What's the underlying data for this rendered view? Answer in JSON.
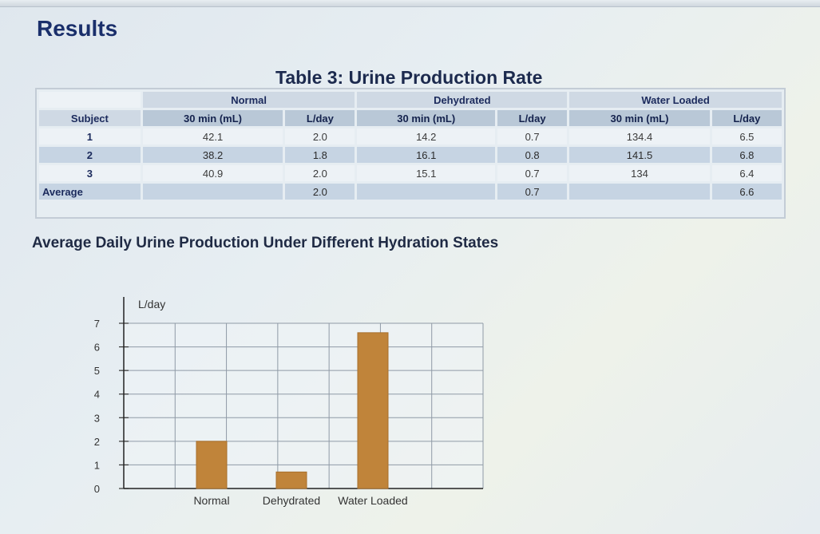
{
  "page": {
    "title": "Results"
  },
  "table": {
    "caption": "Table 3: Urine Production Rate",
    "group_headers": [
      "Normal",
      "Dehydrated",
      "Water Loaded"
    ],
    "subject_header": "Subject",
    "sub_headers": {
      "ml": "30 min (mL)",
      "lday": "L/day"
    },
    "rows": [
      {
        "subject": "1",
        "normal_ml": "42.1",
        "normal_lday": "2.0",
        "dehyd_ml": "14.2",
        "dehyd_lday": "0.7",
        "water_ml": "134.4",
        "water_lday": "6.5"
      },
      {
        "subject": "2",
        "normal_ml": "38.2",
        "normal_lday": "1.8",
        "dehyd_ml": "16.1",
        "dehyd_lday": "0.8",
        "water_ml": "141.5",
        "water_lday": "6.8"
      },
      {
        "subject": "3",
        "normal_ml": "40.9",
        "normal_lday": "2.0",
        "dehyd_ml": "15.1",
        "dehyd_lday": "0.7",
        "water_ml": "134",
        "water_lday": "6.4"
      }
    ],
    "average": {
      "label": "Average",
      "normal_lday": "2.0",
      "dehyd_lday": "0.7",
      "water_lday": "6.6"
    }
  },
  "chart_data": {
    "type": "bar",
    "title": "Average Daily Urine Production Under Different Hydration States",
    "ylabel": "L/day",
    "xlabel": "",
    "categories": [
      "Normal",
      "Dehydrated",
      "Water Loaded"
    ],
    "values": [
      2.0,
      0.7,
      6.6
    ],
    "ylim": [
      0,
      7
    ],
    "yticks": [
      0,
      1,
      2,
      3,
      4,
      5,
      6,
      7
    ],
    "grid": true,
    "bar_color": "#c0843a"
  }
}
